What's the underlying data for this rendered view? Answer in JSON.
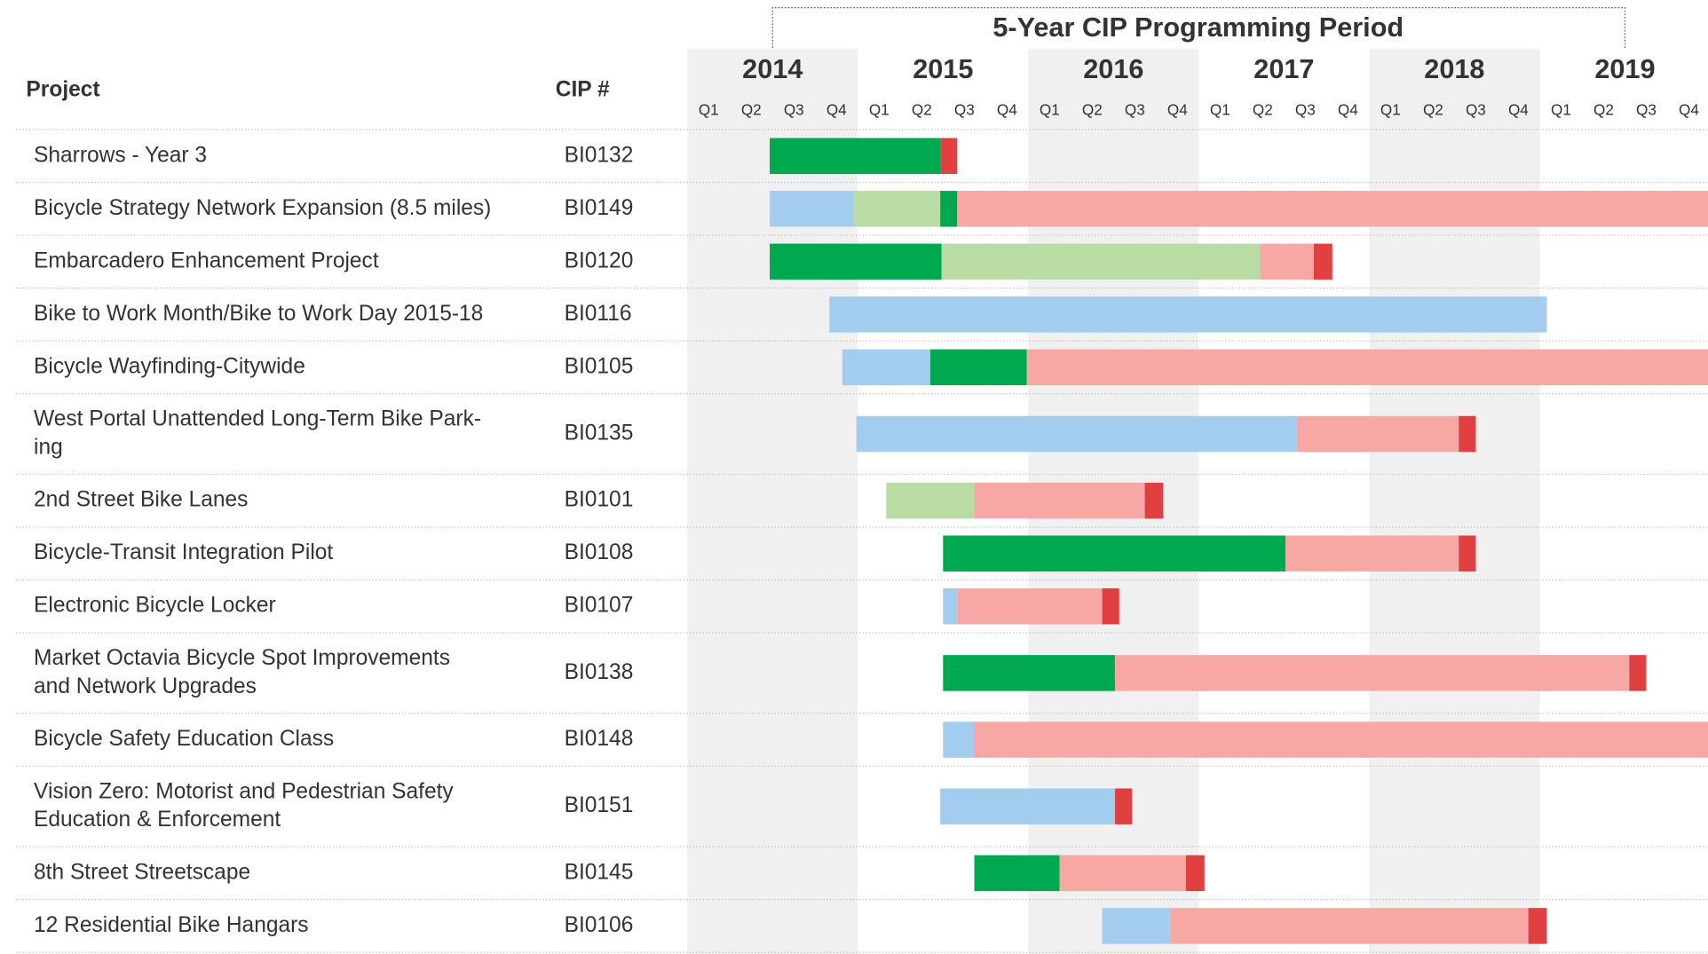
{
  "chart_data": {
    "type": "gantt",
    "title": "5-Year CIP Programming Period",
    "period": [
      6,
      66
    ],
    "column_headers": [
      "Project",
      "CIP #"
    ],
    "xlim": [
      0,
      72
    ],
    "xticks": [
      {
        "value": 6,
        "label": "2014"
      },
      {
        "value": 18,
        "label": "2015"
      },
      {
        "value": 30,
        "label": "2016"
      },
      {
        "value": 42,
        "label": "2017"
      },
      {
        "value": 54,
        "label": "2018"
      },
      {
        "value": 66,
        "label": "2019"
      }
    ],
    "minor_xticks": [
      {
        "value": 1.5,
        "label": "Q1"
      },
      {
        "value": 4.5,
        "label": "Q2"
      },
      {
        "value": 7.5,
        "label": "Q3"
      },
      {
        "value": 10.5,
        "label": "Q4"
      },
      {
        "value": 13.5,
        "label": "Q1"
      },
      {
        "value": 16.5,
        "label": "Q2"
      },
      {
        "value": 19.5,
        "label": "Q3"
      },
      {
        "value": 22.5,
        "label": "Q4"
      },
      {
        "value": 25.5,
        "label": "Q1"
      },
      {
        "value": 28.5,
        "label": "Q2"
      },
      {
        "value": 31.5,
        "label": "Q3"
      },
      {
        "value": 34.5,
        "label": "Q4"
      },
      {
        "value": 37.5,
        "label": "Q1"
      },
      {
        "value": 40.5,
        "label": "Q2"
      },
      {
        "value": 43.5,
        "label": "Q3"
      },
      {
        "value": 46.5,
        "label": "Q4"
      },
      {
        "value": 49.5,
        "label": "Q1"
      },
      {
        "value": 52.5,
        "label": "Q2"
      },
      {
        "value": 55.5,
        "label": "Q3"
      },
      {
        "value": 58.5,
        "label": "Q4"
      },
      {
        "value": 61.5,
        "label": "Q1"
      },
      {
        "value": 64.5,
        "label": "Q2"
      },
      {
        "value": 67.5,
        "label": "Q3"
      },
      {
        "value": 70.5,
        "label": "Q4"
      }
    ],
    "rows": [
      {
        "name": [
          "Sharrows - Year 3"
        ],
        "cip": "BI0132",
        "segments": [
          {
            "start": 5.8,
            "end": 17.8,
            "color": "#00a94f"
          },
          {
            "start": 17.8,
            "end": 19.0,
            "color": "#e0403f"
          }
        ]
      },
      {
        "name": [
          "Bicycle Strategy Network Expansion (8.5 miles)"
        ],
        "cip": "BI0149",
        "segments": [
          {
            "start": 5.8,
            "end": 11.7,
            "color": "#a3cdee"
          },
          {
            "start": 11.7,
            "end": 17.8,
            "color": "#b8dca4"
          },
          {
            "start": 17.8,
            "end": 19.0,
            "color": "#00a94f"
          },
          {
            "start": 19.0,
            "end": 72,
            "color": "#f7a8a5"
          }
        ]
      },
      {
        "name": [
          "Embarcadero Enhancement Project"
        ],
        "cip": "BI0120",
        "segments": [
          {
            "start": 5.8,
            "end": 17.9,
            "color": "#00a94f"
          },
          {
            "start": 17.9,
            "end": 40.3,
            "color": "#b8dca4"
          },
          {
            "start": 40.3,
            "end": 44.1,
            "color": "#f7a8a5"
          },
          {
            "start": 44.1,
            "end": 45.4,
            "color": "#e0403f"
          }
        ]
      },
      {
        "name": [
          "Bike to Work Month/Bike to Work Day 2015-18"
        ],
        "cip": "BI0116",
        "segments": [
          {
            "start": 10.0,
            "end": 60.5,
            "color": "#a3cdee"
          }
        ]
      },
      {
        "name": [
          "Bicycle Wayfinding-Citywide"
        ],
        "cip": "BI0105",
        "segments": [
          {
            "start": 10.9,
            "end": 17.1,
            "color": "#a3cdee"
          },
          {
            "start": 17.1,
            "end": 23.9,
            "color": "#00a94f"
          },
          {
            "start": 23.9,
            "end": 72,
            "color": "#f7a8a5"
          }
        ]
      },
      {
        "name": [
          "West Portal Unattended Long-Term Bike Park-",
          "ing"
        ],
        "cip": "BI0135",
        "segments": [
          {
            "start": 11.9,
            "end": 42.9,
            "color": "#a3cdee"
          },
          {
            "start": 42.9,
            "end": 54.3,
            "color": "#f7a8a5"
          },
          {
            "start": 54.3,
            "end": 55.5,
            "color": "#e0403f"
          }
        ]
      },
      {
        "name": [
          "2nd Street Bike Lanes"
        ],
        "cip": "BI0101",
        "segments": [
          {
            "start": 14.0,
            "end": 20.2,
            "color": "#b8dca4"
          },
          {
            "start": 20.2,
            "end": 32.2,
            "color": "#f7a8a5"
          },
          {
            "start": 32.2,
            "end": 33.5,
            "color": "#e0403f"
          }
        ]
      },
      {
        "name": [
          "Bicycle-Transit Integration Pilot"
        ],
        "cip": "BI0108",
        "segments": [
          {
            "start": 18.0,
            "end": 42.1,
            "color": "#00a94f"
          },
          {
            "start": 42.1,
            "end": 54.3,
            "color": "#f7a8a5"
          },
          {
            "start": 54.3,
            "end": 55.5,
            "color": "#e0403f"
          }
        ]
      },
      {
        "name": [
          "Electronic Bicycle Locker"
        ],
        "cip": "BI0107",
        "segments": [
          {
            "start": 18.0,
            "end": 19.0,
            "color": "#a3cdee"
          },
          {
            "start": 19.0,
            "end": 29.2,
            "color": "#f7a8a5"
          },
          {
            "start": 29.2,
            "end": 30.4,
            "color": "#e0403f"
          }
        ]
      },
      {
        "name": [
          "Market Octavia Bicycle Spot Improvements",
          "and Network Upgrades"
        ],
        "cip": "BI0138",
        "segments": [
          {
            "start": 18.0,
            "end": 30.1,
            "color": "#00a94f"
          },
          {
            "start": 30.1,
            "end": 66.3,
            "color": "#f7a8a5"
          },
          {
            "start": 66.3,
            "end": 67.5,
            "color": "#e0403f"
          }
        ]
      },
      {
        "name": [
          "Bicycle Safety Education Class"
        ],
        "cip": "BI0148",
        "segments": [
          {
            "start": 18.0,
            "end": 20.2,
            "color": "#a3cdee"
          },
          {
            "start": 20.2,
            "end": 72,
            "color": "#f7a8a5"
          }
        ]
      },
      {
        "name": [
          "Vision Zero: Motorist and Pedestrian Safety",
          "Education & Enforcement"
        ],
        "cip": "BI0151",
        "segments": [
          {
            "start": 17.8,
            "end": 30.1,
            "color": "#a3cdee"
          },
          {
            "start": 30.1,
            "end": 31.3,
            "color": "#e0403f"
          }
        ]
      },
      {
        "name": [
          "8th Street Streetscape"
        ],
        "cip": "BI0145",
        "segments": [
          {
            "start": 20.2,
            "end": 26.2,
            "color": "#00a94f"
          },
          {
            "start": 26.2,
            "end": 35.1,
            "color": "#f7a8a5"
          },
          {
            "start": 35.1,
            "end": 36.4,
            "color": "#e0403f"
          }
        ]
      },
      {
        "name": [
          "12 Residential Bike Hangars"
        ],
        "cip": "BI0106",
        "segments": [
          {
            "start": 29.2,
            "end": 34.0,
            "color": "#a3cdee"
          },
          {
            "start": 34.0,
            "end": 59.2,
            "color": "#f7a8a5"
          },
          {
            "start": 59.2,
            "end": 60.5,
            "color": "#e0403f"
          }
        ]
      }
    ]
  }
}
